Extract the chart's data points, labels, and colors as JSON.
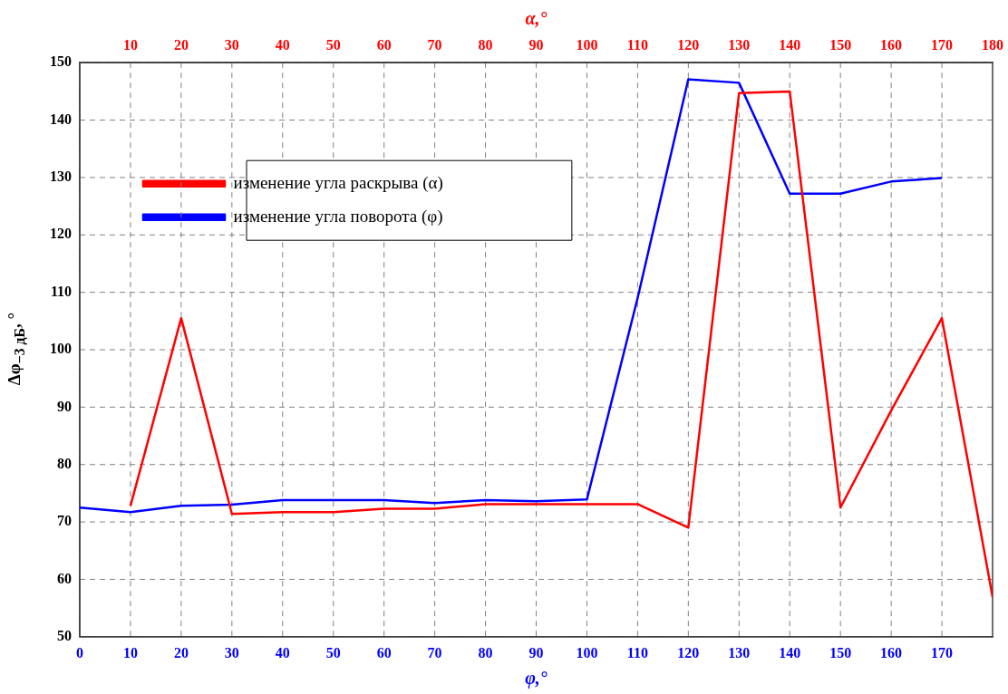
{
  "chart_data": {
    "type": "line",
    "xlabel": "φ,°",
    "x2label": "α,°",
    "ylabel": "Δφ$_{−3 дБ}$, °",
    "xlim": [
      0,
      180
    ],
    "xticks": [
      0,
      10,
      20,
      30,
      40,
      50,
      60,
      70,
      80,
      90,
      100,
      110,
      120,
      130,
      140,
      150,
      160,
      170
    ],
    "x2lim": [
      0,
      180
    ],
    "x2ticks": [
      10,
      20,
      30,
      40,
      50,
      60,
      70,
      80,
      90,
      100,
      110,
      120,
      130,
      140,
      150,
      160,
      170,
      180
    ],
    "ylim": [
      50,
      150
    ],
    "yticks": [
      50,
      60,
      70,
      80,
      90,
      100,
      110,
      120,
      130,
      140,
      150
    ],
    "grid": true,
    "legend": "top left",
    "line_style": "solid",
    "marker": "none",
    "series": [
      {
        "name": "изменение угла раскрыва (α)",
        "color": "#ff0000",
        "axis": "x2",
        "x": [
          10,
          20,
          30,
          40,
          50,
          60,
          70,
          80,
          90,
          100,
          110,
          120,
          130,
          140,
          150,
          160,
          170,
          180
        ],
        "values": [
          72.8,
          105.5,
          71.4,
          71.7,
          71.7,
          72.3,
          72.3,
          73.1,
          73.1,
          73.1,
          73.1,
          69,
          144.7,
          145,
          72.5,
          89.4,
          105.5,
          56.9
        ]
      },
      {
        "name": "изменение угла поворота (φ)",
        "color": "#0000ff",
        "x": [
          0,
          10,
          20,
          30,
          40,
          50,
          60,
          70,
          80,
          90,
          100,
          110,
          120,
          130,
          140,
          150,
          160,
          170
        ],
        "values": [
          72.5,
          71.7,
          72.8,
          73,
          73.8,
          73.8,
          73.8,
          73.3,
          73.8,
          73.6,
          73.9,
          109,
          147.1,
          146.5,
          127.2,
          127.2,
          129.3,
          129.9
        ]
      }
    ]
  }
}
